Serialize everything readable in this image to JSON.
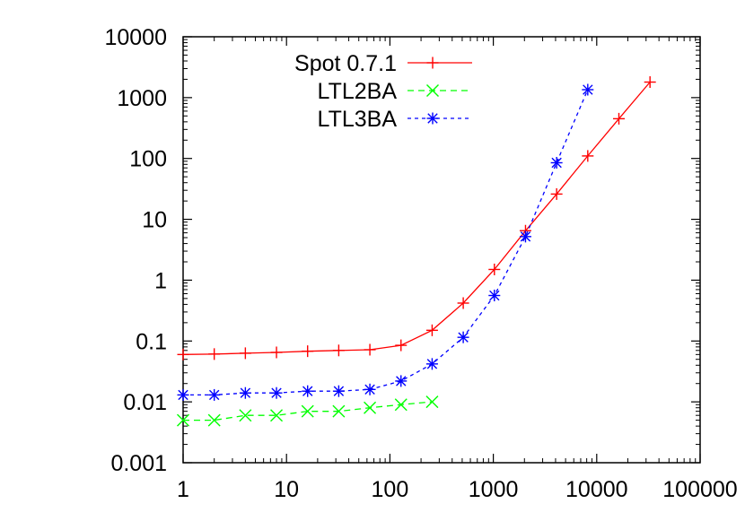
{
  "chart_data": {
    "type": "line",
    "title": "",
    "xlabel": "",
    "ylabel": "",
    "xscale": "log",
    "yscale": "log",
    "xlim": [
      1,
      100000
    ],
    "ylim": [
      0.001,
      10000
    ],
    "x_ticks": [
      {
        "value": 1,
        "label": "1"
      },
      {
        "value": 10,
        "label": "10"
      },
      {
        "value": 100,
        "label": "100"
      },
      {
        "value": 1000,
        "label": "1000"
      },
      {
        "value": 10000,
        "label": "10000"
      },
      {
        "value": 100000,
        "label": "100000"
      }
    ],
    "y_ticks": [
      {
        "value": 0.001,
        "label": "0.001"
      },
      {
        "value": 0.01,
        "label": "0.01"
      },
      {
        "value": 0.1,
        "label": "0.1"
      },
      {
        "value": 1,
        "label": "1"
      },
      {
        "value": 10,
        "label": "10"
      },
      {
        "value": 100,
        "label": "100"
      },
      {
        "value": 1000,
        "label": "1000"
      },
      {
        "value": 10000,
        "label": "10000"
      }
    ],
    "grid": false,
    "legend_position": "top-left",
    "series": [
      {
        "name": "Spot 0.7.1",
        "color": "#ff0000",
        "marker": "plus",
        "dash": "solid",
        "x": [
          1,
          2,
          4,
          8,
          16,
          32,
          64,
          128,
          256,
          512,
          1024,
          2048,
          4096,
          8192,
          16384,
          32768
        ],
        "y": [
          0.06,
          0.061,
          0.063,
          0.065,
          0.068,
          0.07,
          0.072,
          0.085,
          0.15,
          0.42,
          1.5,
          6.5,
          26,
          110,
          450,
          1800
        ]
      },
      {
        "name": "LTL2BA",
        "color": "#00ff00",
        "marker": "cross",
        "dash": "dashed",
        "x": [
          1,
          2,
          4,
          8,
          16,
          32,
          64,
          128,
          256
        ],
        "y": [
          0.005,
          0.005,
          0.006,
          0.006,
          0.007,
          0.007,
          0.008,
          0.009,
          0.01
        ]
      },
      {
        "name": "LTL3BA",
        "color": "#0000ff",
        "marker": "star",
        "dash": "dotted",
        "x": [
          1,
          2,
          4,
          8,
          16,
          32,
          64,
          128,
          256,
          512,
          1024,
          2048,
          4096,
          8192
        ],
        "y": [
          0.013,
          0.013,
          0.014,
          0.014,
          0.015,
          0.015,
          0.016,
          0.022,
          0.042,
          0.115,
          0.56,
          5.2,
          85,
          1350
        ]
      }
    ]
  }
}
